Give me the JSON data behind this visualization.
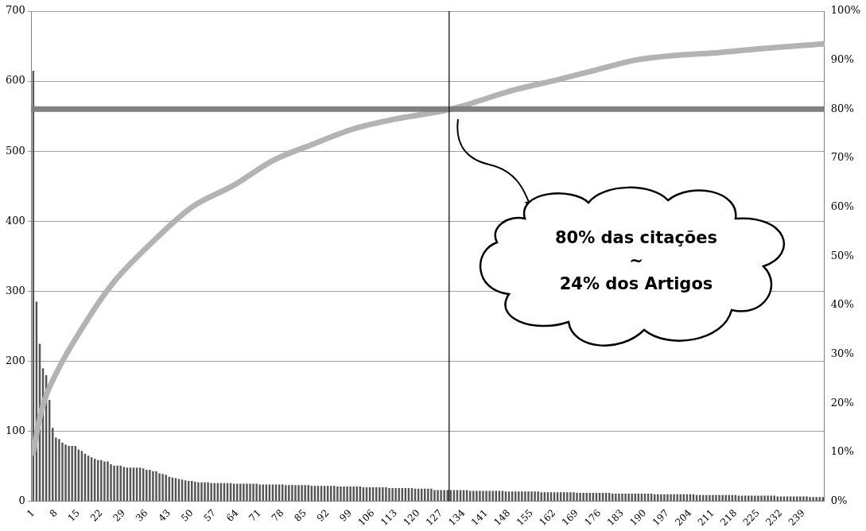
{
  "chart_data": {
    "type": "bar",
    "x": [
      1,
      2,
      3,
      4,
      5,
      6,
      7,
      8,
      9,
      10,
      11,
      12,
      13,
      14,
      15,
      16,
      17,
      18,
      19,
      20,
      21,
      22,
      23,
      24,
      25,
      26,
      27,
      28,
      29,
      30,
      31,
      32,
      33,
      34,
      35,
      36,
      37,
      38,
      39,
      40,
      41,
      42,
      43,
      44,
      45,
      46,
      47,
      48,
      49,
      50,
      51,
      52,
      53,
      54,
      55,
      56,
      57,
      58,
      59,
      60,
      61,
      62,
      63,
      64,
      65,
      66,
      67,
      68,
      69,
      70,
      71,
      72,
      73,
      74,
      75,
      76,
      77,
      78,
      79,
      80,
      81,
      82,
      83,
      84,
      85,
      86,
      87,
      88,
      89,
      90,
      91,
      92,
      93,
      94,
      95,
      96,
      97,
      98,
      99,
      100,
      101,
      102,
      103,
      104,
      105,
      106,
      107,
      108,
      109,
      110,
      111,
      112,
      113,
      114,
      115,
      116,
      117,
      118,
      119,
      120,
      121,
      122,
      123,
      124,
      125,
      126,
      127,
      128,
      129,
      130,
      131,
      132,
      133,
      134,
      135,
      136,
      137,
      138,
      139,
      140,
      141,
      142,
      143,
      144,
      145,
      146,
      147,
      148,
      149,
      150,
      151,
      152,
      153,
      154,
      155,
      156,
      157,
      158,
      159,
      160,
      161,
      162,
      163,
      164,
      165,
      166,
      167,
      168,
      169,
      170,
      171,
      172,
      173,
      174,
      175,
      176,
      177,
      178,
      179,
      180,
      181,
      182,
      183,
      184,
      185,
      186,
      187,
      188,
      189,
      190,
      191,
      192,
      193,
      194,
      195,
      196,
      197,
      198,
      199,
      200,
      201,
      202,
      203,
      204,
      205,
      206,
      207,
      208,
      209,
      210,
      211,
      212,
      213,
      214,
      215,
      216,
      217,
      218,
      219,
      220,
      221,
      222,
      223,
      224,
      225,
      226,
      227,
      228,
      229,
      230,
      231,
      232,
      233,
      234,
      235,
      236,
      237,
      238,
      239,
      240,
      241,
      242,
      243,
      244,
      245
    ],
    "series": [
      {
        "color": "#555555",
        "values": [
          615,
          285,
          225,
          190,
          180,
          145,
          105,
          91,
          89,
          84,
          81,
          79,
          79,
          79,
          74,
          72,
          68,
          65,
          63,
          61,
          59,
          59,
          57,
          57,
          53,
          51,
          51,
          51,
          49,
          48,
          48,
          48,
          48,
          48,
          47,
          45,
          45,
          43,
          43,
          40,
          39,
          38,
          35,
          34,
          33,
          32,
          31,
          30,
          29,
          29,
          28,
          27,
          27,
          27,
          27,
          26,
          26,
          26,
          26,
          26,
          26,
          26,
          25,
          25,
          25,
          25,
          25,
          25,
          25,
          25,
          24,
          24,
          24,
          24,
          24,
          24,
          24,
          24,
          23,
          23,
          23,
          23,
          23,
          23,
          23,
          23,
          22,
          22,
          22,
          22,
          22,
          22,
          22,
          22,
          21,
          21,
          21,
          21,
          21,
          21,
          21,
          21,
          20,
          20,
          20,
          20,
          20,
          20,
          20,
          20,
          19,
          19,
          19,
          19,
          19,
          19,
          19,
          19,
          18,
          18,
          18,
          18,
          18,
          18,
          16,
          16,
          16,
          16,
          16,
          16,
          16,
          16,
          16,
          16,
          16,
          15,
          15,
          15,
          15,
          15,
          15,
          15,
          15,
          15,
          15,
          15,
          14,
          14,
          14,
          14,
          14,
          14,
          14,
          14,
          14,
          14,
          14,
          13,
          13,
          13,
          13,
          13,
          13,
          13,
          13,
          13,
          13,
          13,
          12,
          12,
          12,
          12,
          12,
          12,
          12,
          12,
          12,
          12,
          12,
          11,
          11,
          11,
          11,
          11,
          11,
          11,
          11,
          11,
          11,
          11,
          11,
          11,
          10,
          10,
          10,
          10,
          10,
          10,
          10,
          10,
          10,
          10,
          10,
          10,
          10,
          9,
          9,
          9,
          9,
          9,
          9,
          9,
          9,
          9,
          9,
          9,
          9,
          9,
          8,
          8,
          8,
          8,
          8,
          8,
          8,
          8,
          8,
          8,
          8,
          8,
          7,
          7,
          7,
          7,
          7,
          7,
          7,
          7,
          7,
          7,
          6,
          6,
          6,
          6,
          6
        ]
      },
      {
        "type": "line",
        "axis": "y2",
        "color": "#b3b3b3",
        "x": [
          1,
          3,
          5,
          8,
          13,
          25,
          38,
          50,
          63,
          75,
          88,
          100,
          113,
          130,
          150,
          163,
          175,
          187,
          200,
          212,
          225,
          245
        ],
        "values": [
          9.9,
          17,
          21.6,
          26,
          32,
          44,
          53,
          60,
          64.5,
          69.5,
          73,
          76,
          78,
          80,
          84,
          86,
          88,
          90,
          91,
          91.5,
          92.3,
          93.3
        ]
      }
    ],
    "xlim": [
      0.5,
      245.5
    ],
    "xticks": [
      1,
      8,
      15,
      22,
      29,
      36,
      43,
      50,
      57,
      64,
      71,
      78,
      85,
      92,
      99,
      106,
      113,
      120,
      127,
      134,
      141,
      148,
      155,
      162,
      169,
      176,
      183,
      190,
      197,
      204,
      211,
      218,
      225,
      232,
      239
    ],
    "ylim": [
      0,
      700
    ],
    "yticks": [
      0,
      100,
      200,
      300,
      400,
      500,
      600,
      700
    ],
    "y2lim": [
      0,
      100
    ],
    "y2ticks": [
      {
        "value": 0,
        "label": "0%"
      },
      {
        "value": 10,
        "label": "10%"
      },
      {
        "value": 20,
        "label": "20%"
      },
      {
        "value": 30,
        "label": "30%"
      },
      {
        "value": 40,
        "label": "40%"
      },
      {
        "value": 50,
        "label": "50%"
      },
      {
        "value": 60,
        "label": "60%"
      },
      {
        "value": 70,
        "label": "70%"
      },
      {
        "value": 80,
        "label": "80%"
      },
      {
        "value": 90,
        "label": "90%"
      },
      {
        "value": 100,
        "label": "100%"
      }
    ],
    "ref_lines": [
      {
        "axis": "y2",
        "value": 80,
        "color": "#808080"
      },
      {
        "axis": "x",
        "value": 129.5,
        "color": "#000000"
      }
    ],
    "annotations": [
      "80% das citações\n~\n24% dos Artigos"
    ],
    "grid": "y",
    "legend": false,
    "marker": "none",
    "line_style": "solid"
  }
}
